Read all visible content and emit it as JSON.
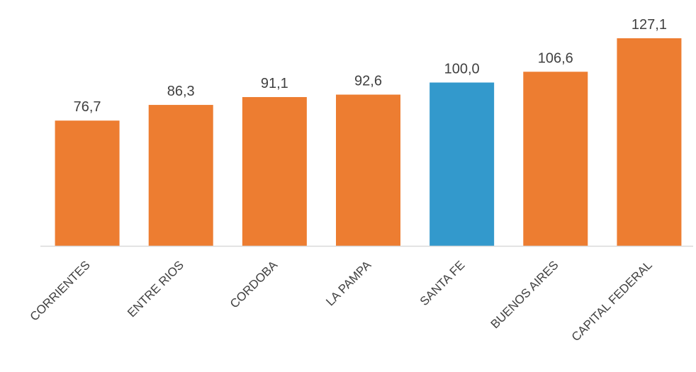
{
  "chart_data": {
    "type": "bar",
    "title": "",
    "xlabel": "",
    "ylabel": "",
    "categories": [
      "CORRIENTES",
      "ENTRE RIOS",
      "CORDOBA",
      "LA PAMPA",
      "SANTA FE",
      "BUENOS AIRES",
      "CAPITAL FEDERAL"
    ],
    "values": [
      76.7,
      86.3,
      91.1,
      92.6,
      100.0,
      106.6,
      127.1
    ],
    "value_labels": [
      "76,7",
      "86,3",
      "91,1",
      "92,6",
      "100,0",
      "106,6",
      "127,1"
    ],
    "ylim": [
      0,
      127.1
    ],
    "grid": false,
    "legend": "none",
    "colors": {
      "default_bar": "#ED7D31",
      "highlight_bar": "#3399CC",
      "highlight_category": "SANTA FE",
      "axis": "#D9D9D9",
      "text": "#404040"
    }
  }
}
